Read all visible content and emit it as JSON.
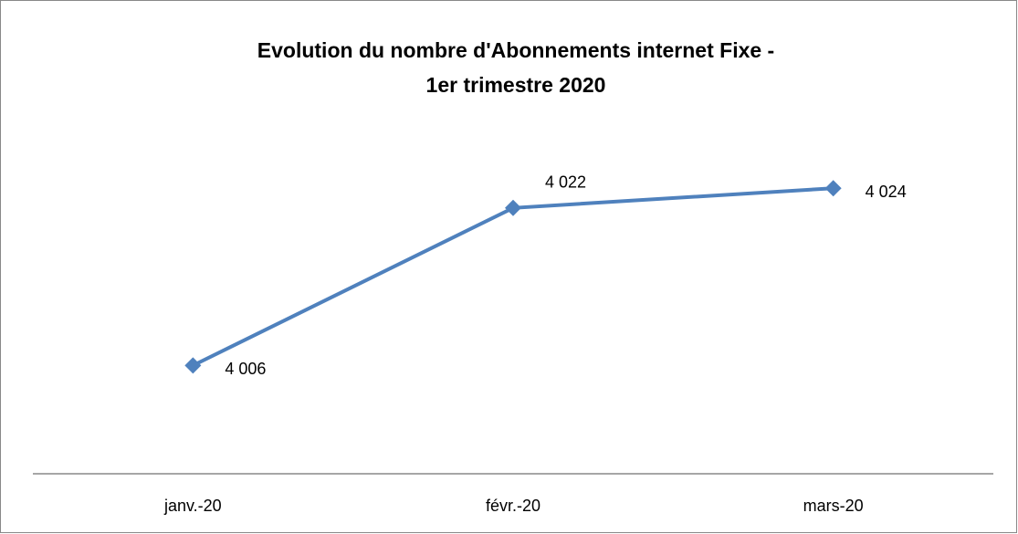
{
  "chart_data": {
    "type": "line",
    "title": [
      "Evolution du nombre d'Abonnements internet Fixe -",
      "1er trimestre 2020"
    ],
    "categories": [
      "janv.-20",
      "févr.-20",
      "mars-20"
    ],
    "values": [
      4006,
      4022,
      4024
    ],
    "value_labels": [
      "4 006",
      "4 022",
      "4 024"
    ],
    "color": "#4f81bd",
    "ylim": [
      3995,
      4030
    ]
  }
}
